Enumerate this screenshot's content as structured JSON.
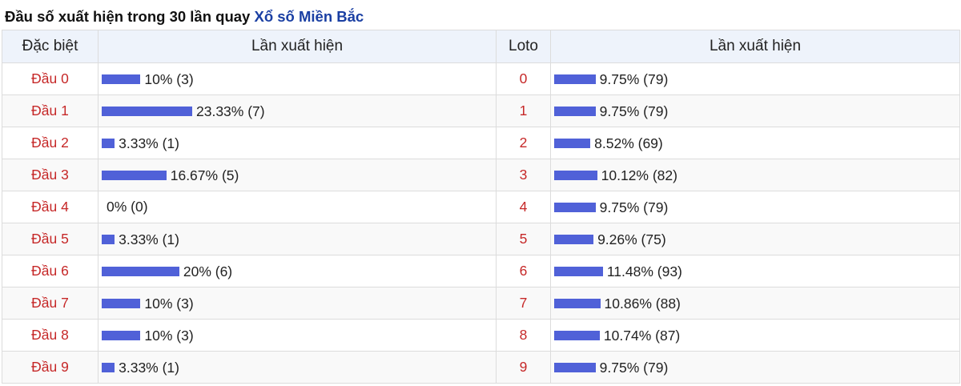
{
  "header": {
    "title_prefix": "Đầu số xuất hiện trong 30 lần quay",
    "title_link": "Xổ số Miền Bắc"
  },
  "table": {
    "columns": [
      "Đặc biệt",
      "Lần xuất hiện",
      "Loto",
      "Lần xuất hiện"
    ],
    "rows": [
      {
        "db_label": "Đầu 0",
        "db_percent": 10,
        "db_text": "10% (3)",
        "loto_label": "0",
        "loto_percent": 9.75,
        "loto_text": "9.75% (79)"
      },
      {
        "db_label": "Đầu 1",
        "db_percent": 23.33,
        "db_text": "23.33% (7)",
        "loto_label": "1",
        "loto_percent": 9.75,
        "loto_text": "9.75% (79)"
      },
      {
        "db_label": "Đầu 2",
        "db_percent": 3.33,
        "db_text": "3.33% (1)",
        "loto_label": "2",
        "loto_percent": 8.52,
        "loto_text": "8.52% (69)"
      },
      {
        "db_label": "Đầu 3",
        "db_percent": 16.67,
        "db_text": "16.67% (5)",
        "loto_label": "3",
        "loto_percent": 10.12,
        "loto_text": "10.12% (82)"
      },
      {
        "db_label": "Đầu 4",
        "db_percent": 0,
        "db_text": "0% (0)",
        "loto_label": "4",
        "loto_percent": 9.75,
        "loto_text": "9.75% (79)"
      },
      {
        "db_label": "Đầu 5",
        "db_percent": 3.33,
        "db_text": "3.33% (1)",
        "loto_label": "5",
        "loto_percent": 9.26,
        "loto_text": "9.26% (75)"
      },
      {
        "db_label": "Đầu 6",
        "db_percent": 20,
        "db_text": "20% (6)",
        "loto_label": "6",
        "loto_percent": 11.48,
        "loto_text": "11.48% (93)"
      },
      {
        "db_label": "Đầu 7",
        "db_percent": 10,
        "db_text": "10% (3)",
        "loto_label": "7",
        "loto_percent": 10.86,
        "loto_text": "10.86% (88)"
      },
      {
        "db_label": "Đầu 8",
        "db_percent": 10,
        "db_text": "10% (3)",
        "loto_label": "8",
        "loto_percent": 10.74,
        "loto_text": "10.74% (87)"
      },
      {
        "db_label": "Đầu 9",
        "db_percent": 3.33,
        "db_text": "3.33% (1)",
        "loto_label": "9",
        "loto_percent": 9.75,
        "loto_text": "9.75% (79)"
      }
    ]
  },
  "colors": {
    "bar": "#5061d8",
    "label_red": "#c62828",
    "link_blue": "#1a3fa3",
    "header_bg": "#eef3fb"
  }
}
